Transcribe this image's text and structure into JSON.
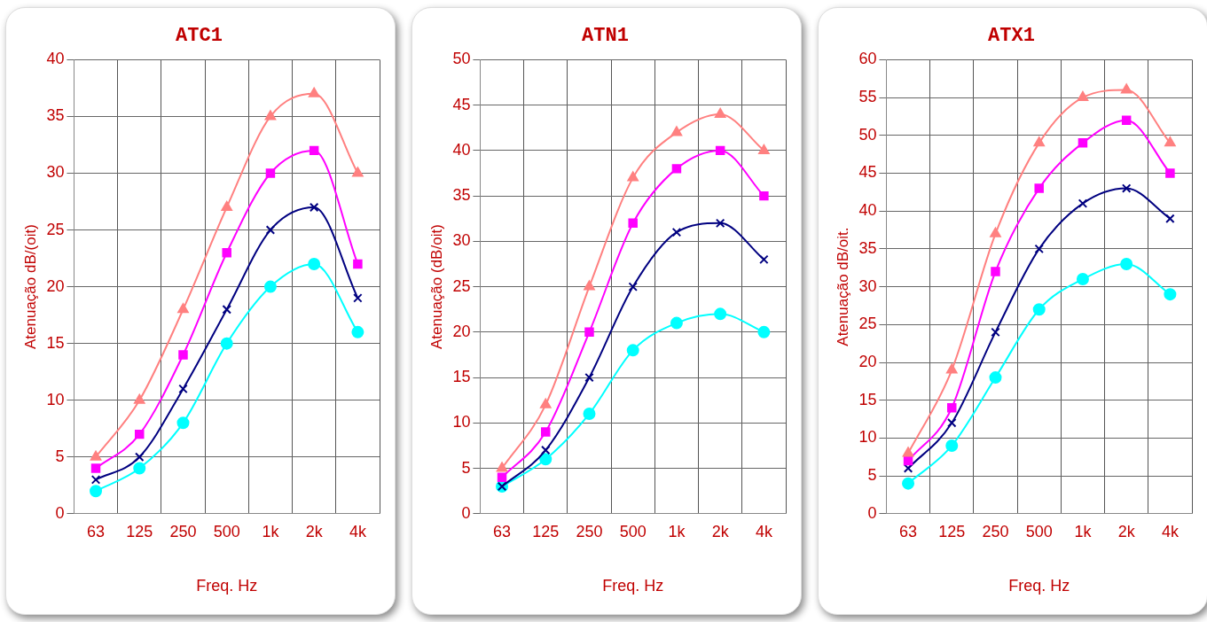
{
  "chart_data": [
    {
      "type": "line",
      "title": "ATC1",
      "xlabel": "Freq. Hz",
      "ylabel": "Atenuação dB/(oit)",
      "categories": [
        "63",
        "125",
        "250",
        "500",
        "1k",
        "2k",
        "4k"
      ],
      "ylim": [
        0,
        40
      ],
      "yticks": [
        0,
        5,
        10,
        15,
        20,
        25,
        30,
        35,
        40
      ],
      "grid": true,
      "legend": false,
      "series": [
        {
          "color": "#ff8080",
          "marker": "triangle",
          "values": [
            5,
            10,
            18,
            27,
            35,
            37,
            30
          ]
        },
        {
          "color": "#ff00ff",
          "marker": "square",
          "values": [
            4,
            7,
            14,
            23,
            30,
            32,
            22
          ]
        },
        {
          "color": "#000080",
          "marker": "cross",
          "values": [
            3,
            5,
            11,
            18,
            25,
            27,
            19
          ]
        },
        {
          "color": "#00ffff",
          "marker": "circle",
          "values": [
            2,
            4,
            8,
            15,
            20,
            22,
            16
          ]
        }
      ]
    },
    {
      "type": "line",
      "title": "ATN1",
      "xlabel": "Freq. Hz",
      "ylabel": "Atenuação (dB/oit)",
      "categories": [
        "63",
        "125",
        "250",
        "500",
        "1k",
        "2k",
        "4k"
      ],
      "ylim": [
        0,
        50
      ],
      "yticks": [
        0,
        5,
        10,
        15,
        20,
        25,
        30,
        35,
        40,
        45,
        50
      ],
      "grid": true,
      "legend": false,
      "series": [
        {
          "color": "#ff8080",
          "marker": "triangle",
          "values": [
            5,
            12,
            25,
            37,
            42,
            44,
            40
          ]
        },
        {
          "color": "#ff00ff",
          "marker": "square",
          "values": [
            4,
            9,
            20,
            32,
            38,
            40,
            35
          ]
        },
        {
          "color": "#000080",
          "marker": "cross",
          "values": [
            3,
            7,
            15,
            25,
            31,
            32,
            28
          ]
        },
        {
          "color": "#00ffff",
          "marker": "circle",
          "values": [
            3,
            6,
            11,
            18,
            21,
            22,
            20
          ]
        }
      ]
    },
    {
      "type": "line",
      "title": "ATX1",
      "xlabel": "Freq. Hz",
      "ylabel": "Atenuação dB/oit.",
      "categories": [
        "63",
        "125",
        "250",
        "500",
        "1k",
        "2k",
        "4k"
      ],
      "ylim": [
        0,
        60
      ],
      "yticks": [
        0,
        5,
        10,
        15,
        20,
        25,
        30,
        35,
        40,
        45,
        50,
        55,
        60
      ],
      "grid": true,
      "legend": false,
      "series": [
        {
          "color": "#ff8080",
          "marker": "triangle",
          "values": [
            8,
            19,
            37,
            49,
            55,
            56,
            49
          ]
        },
        {
          "color": "#ff00ff",
          "marker": "square",
          "values": [
            7,
            14,
            32,
            43,
            49,
            52,
            45
          ]
        },
        {
          "color": "#000080",
          "marker": "cross",
          "values": [
            6,
            12,
            24,
            35,
            41,
            43,
            39
          ]
        },
        {
          "color": "#00ffff",
          "marker": "circle",
          "values": [
            4,
            9,
            18,
            27,
            31,
            33,
            29
          ]
        }
      ]
    }
  ]
}
